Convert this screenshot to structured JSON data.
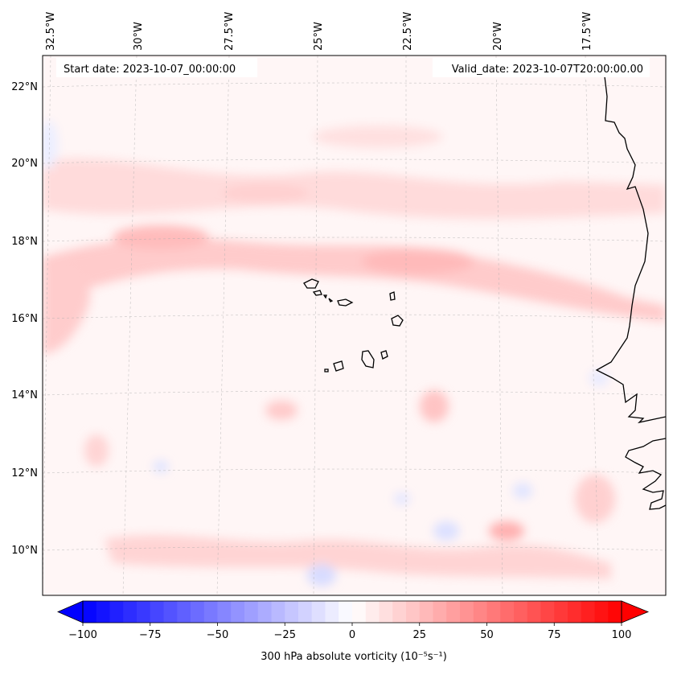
{
  "header": {
    "start_date": "Start date: 2023-10-07_00:00:00",
    "valid_date": "Valid_date: 2023-10-07T20:00:00.00"
  },
  "longitude_labels": [
    "32.5°W",
    "30°W",
    "27.5°W",
    "25°W",
    "22.5°W",
    "20°W",
    "17.5°W"
  ],
  "latitude_labels": [
    "22°N",
    "20°N",
    "18°N",
    "16°N",
    "14°N",
    "12°N",
    "10°N"
  ],
  "colorbar": {
    "label": "300 hPa absolute vorticity (10⁻⁵s⁻¹)",
    "ticks": [
      "−100",
      "−75",
      "−50",
      "−25",
      "0",
      "25",
      "50",
      "75",
      "100"
    ],
    "vmin": -100,
    "vmax": 100,
    "low_color": "#0000ff",
    "mid_color": "#ffffff",
    "high_color": "#ff0000"
  },
  "chart_data": {
    "type": "heatmap",
    "variable": "300 hPa absolute vorticity",
    "units": "10⁻⁵s⁻¹",
    "lon_range": [
      -33,
      -16
    ],
    "lat_range": [
      9,
      22.8
    ],
    "value_range": [
      -100,
      100
    ]
  }
}
